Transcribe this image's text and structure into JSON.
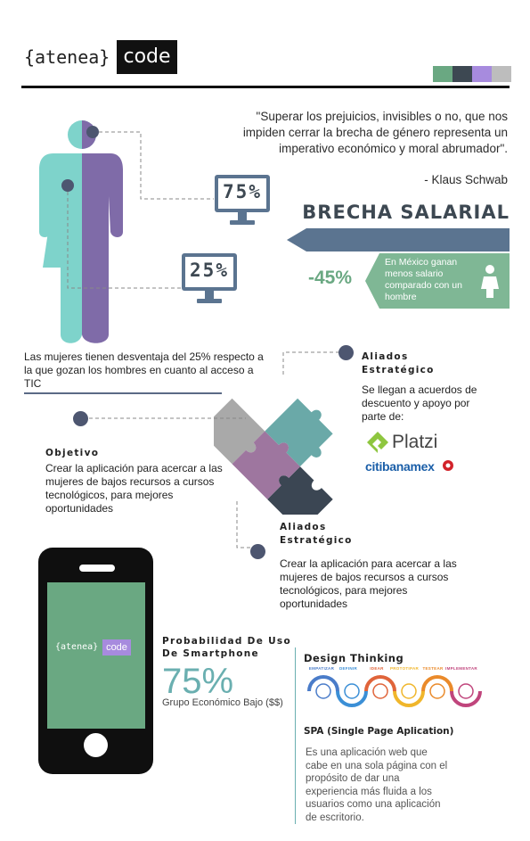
{
  "header": {
    "logo_text": "{atenea}",
    "logo_code": "code",
    "swatches": [
      "#6aa882",
      "#3d4852",
      "#a78bde",
      "#bdbdbd"
    ]
  },
  "quote": {
    "text": "\"Superar los prejuicios, invisibles o no, que nos impiden cerrar la brecha de género representa un imperativo económico y moral abrumador\".",
    "author": "- Klaus Schwab"
  },
  "stats": {
    "monitor_top": "75%",
    "monitor_bottom": "25%"
  },
  "brecha": {
    "title": "BRECHA SALARIAL",
    "percent": "-45%",
    "text": "En México ganan menos salario comparado con un hombre"
  },
  "women": {
    "text": "Las mujeres  tienen desventaja del 25% respecto a la que gozan los hombres en cuanto al acceso a TIC"
  },
  "aliados_1": {
    "title": "Aliados Estratégico",
    "text": "Se llegan a acuerdos de descuento y apoyo por parte de:",
    "partners": [
      "Platzi",
      "citibanamex"
    ]
  },
  "objetivo": {
    "title": "Objetivo",
    "text": "Crear la aplicación para acercar a las mujeres de bajos recursos a cursos tecnológicos, para mejores oportunidades"
  },
  "aliados_2": {
    "title": "Aliados Estratégico",
    "text": "Crear la aplicación para acercar a las mujeres de bajos recursos a cursos tecnológicos, para mejores oportunidades"
  },
  "phone": {
    "logo_text": "{atenea}",
    "logo_code": "code"
  },
  "smartphone": {
    "title": "Probabilidad De Uso De Smartphone",
    "percent": "75%",
    "group": "Grupo Económico Bajo  ($$)"
  },
  "design_thinking": {
    "title": "Design Thinking",
    "steps": [
      {
        "label": "EMPATIZAR",
        "color": "#4a7cc9"
      },
      {
        "label": "DEFINIR",
        "color": "#3b8fd6"
      },
      {
        "label": "IDEAR",
        "color": "#e0643a"
      },
      {
        "label": "PROTOTIPAR",
        "color": "#f0b62b"
      },
      {
        "label": "TESTEAR",
        "color": "#ea8a2a"
      },
      {
        "label": "IMPLEMENTAR",
        "color": "#c0457c"
      }
    ]
  },
  "spa": {
    "title": "SPA (Single Page Aplication)",
    "text": "Es una aplicación web que cabe en una sola página con el propósito de dar una experiencia más fluida a los usuarios como una aplicación de escritorio."
  }
}
